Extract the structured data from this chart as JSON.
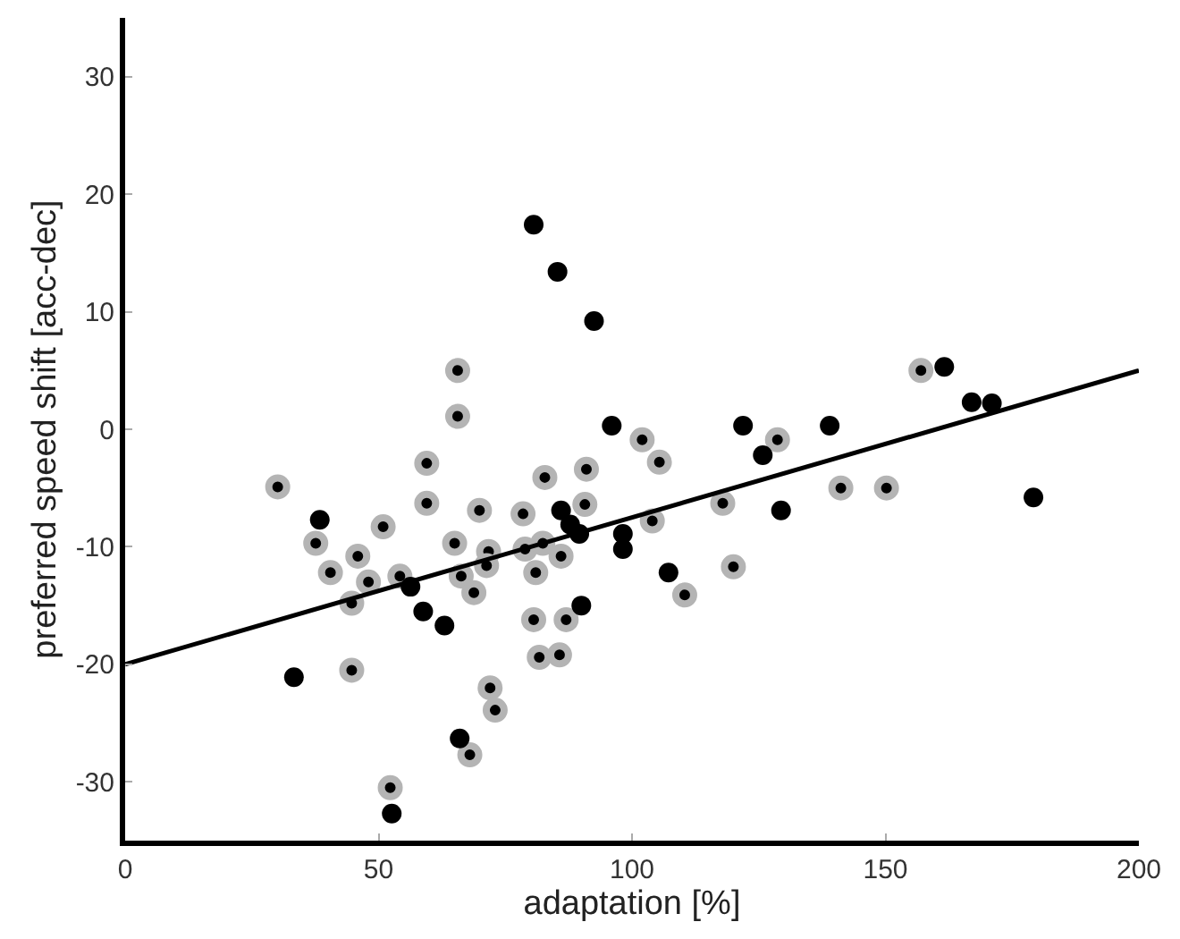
{
  "chart_data": {
    "type": "scatter",
    "xlabel": "adaptation [%]",
    "ylabel": "preferred speed shift [acc-dec]",
    "xlim": [
      0,
      200
    ],
    "ylim": [
      -35,
      35
    ],
    "xticks": [
      0,
      50,
      100,
      150,
      200
    ],
    "yticks": [
      -30,
      -20,
      -10,
      0,
      10,
      20,
      30
    ],
    "series": [
      {
        "color": "#b4b4b4",
        "marker": "circle",
        "x": [
          30.1,
          37.6,
          40.5,
          45.9,
          48,
          44.7,
          44.7,
          52.3,
          54.2,
          66.3,
          65,
          68.8,
          71.7,
          71.3,
          72,
          73,
          68,
          78.9,
          81,
          80.6,
          81.7,
          50.9,
          59.5,
          59.5,
          65.6,
          65.6,
          102,
          105.4,
          69.9,
          78.5,
          82.8,
          91,
          90.7,
          104,
          117.9,
          82.4,
          86,
          110.4,
          120,
          87,
          85.7,
          128.7,
          141.2,
          150.2,
          157
        ],
        "values": [
          -4.9,
          -9.7,
          -12.2,
          -10.8,
          -13,
          -14.8,
          -20.5,
          -30.5,
          -12.5,
          -12.5,
          -9.7,
          -13.9,
          -10.4,
          -11.6,
          -22,
          -23.9,
          -27.7,
          -10.2,
          -12.2,
          -16.2,
          -19.4,
          -8.3,
          -2.9,
          -6.3,
          5,
          1.1,
          -0.9,
          -2.8,
          -6.9,
          -7.2,
          -4.1,
          -3.4,
          -6.4,
          -7.8,
          -6.3,
          -9.7,
          -10.8,
          -14.1,
          -11.7,
          -16.2,
          -19.2,
          -0.9,
          -5,
          -5,
          5
        ]
      },
      {
        "color": "#000000",
        "marker": "circle",
        "x": [
          33.3,
          38.4,
          58.8,
          63,
          66,
          52.6,
          56.3,
          80.6,
          85.3,
          92.5,
          96,
          86,
          87.8,
          89.6,
          98.2,
          98.2,
          107.2,
          90,
          121.9,
          125.8,
          139,
          129.4,
          161.6,
          167,
          171,
          179.2
        ],
        "values": [
          -21.1,
          -7.7,
          -15.5,
          -16.7,
          -26.3,
          -32.7,
          -13.4,
          17.4,
          13.4,
          9.2,
          0.3,
          -6.9,
          -8.1,
          -8.9,
          -8.9,
          -10.2,
          -12.2,
          -15,
          0.3,
          -2.2,
          0.3,
          -6.9,
          5.3,
          2.3,
          2.2,
          -5.8
        ]
      },
      {
        "type": "line",
        "color": "#000000",
        "x": [
          0,
          200
        ],
        "values": [
          -20,
          5
        ],
        "marker": "none",
        "line_style": "solid"
      }
    ]
  }
}
